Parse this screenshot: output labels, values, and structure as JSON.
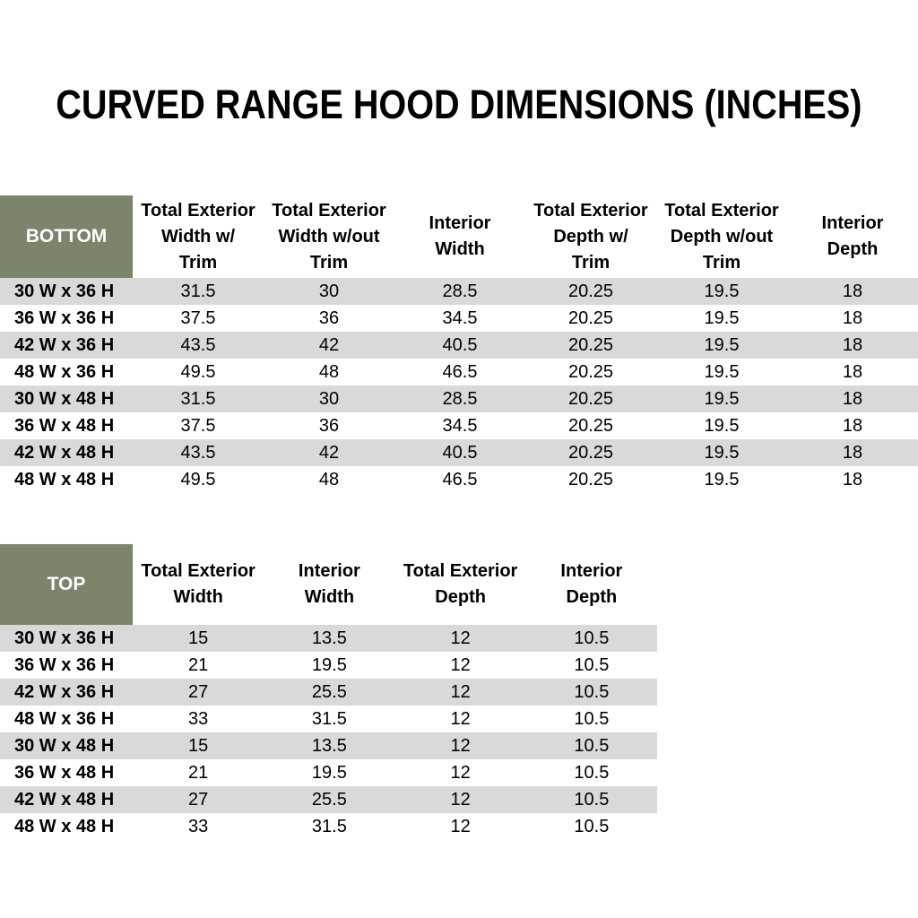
{
  "page": {
    "title": "CURVED RANGE HOOD DIMENSIONS (INCHES)"
  },
  "colors": {
    "accent_green": "#7A856C",
    "stripe_gray": "#D9D9D9",
    "text_black": "#000000",
    "corner_text_white": "#FFFFFF"
  },
  "bottom_table": {
    "corner_label": "BOTTOM",
    "columns": [
      "Total Exterior\nWidth w/\nTrim",
      "Total Exterior\nWidth w/out\nTrim",
      "Interior\nWidth",
      "Total Exterior\nDepth w/\nTrim",
      "Total Exterior\nDepth w/out\nTrim",
      "Interior\nDepth"
    ],
    "rows": [
      {
        "label": "30 W x 36 H",
        "values": [
          "31.5",
          "30",
          "28.5",
          "20.25",
          "19.5",
          "18"
        ]
      },
      {
        "label": "36 W x 36 H",
        "values": [
          "37.5",
          "36",
          "34.5",
          "20.25",
          "19.5",
          "18"
        ]
      },
      {
        "label": "42 W x 36 H",
        "values": [
          "43.5",
          "42",
          "40.5",
          "20.25",
          "19.5",
          "18"
        ]
      },
      {
        "label": "48 W x 36 H",
        "values": [
          "49.5",
          "48",
          "46.5",
          "20.25",
          "19.5",
          "18"
        ]
      },
      {
        "label": "30 W x 48 H",
        "values": [
          "31.5",
          "30",
          "28.5",
          "20.25",
          "19.5",
          "18"
        ]
      },
      {
        "label": "36 W x 48 H",
        "values": [
          "37.5",
          "36",
          "34.5",
          "20.25",
          "19.5",
          "18"
        ]
      },
      {
        "label": "42 W x 48 H",
        "values": [
          "43.5",
          "42",
          "40.5",
          "20.25",
          "19.5",
          "18"
        ]
      },
      {
        "label": "48 W x 48 H",
        "values": [
          "49.5",
          "48",
          "46.5",
          "20.25",
          "19.5",
          "18"
        ]
      }
    ]
  },
  "top_table": {
    "corner_label": "TOP",
    "columns": [
      "Total Exterior\nWidth",
      "Interior\nWidth",
      "Total Exterior\nDepth",
      "Interior\nDepth"
    ],
    "rows": [
      {
        "label": "30 W x 36 H",
        "values": [
          "15",
          "13.5",
          "12",
          "10.5"
        ]
      },
      {
        "label": "36 W x 36 H",
        "values": [
          "21",
          "19.5",
          "12",
          "10.5"
        ]
      },
      {
        "label": "42 W x 36 H",
        "values": [
          "27",
          "25.5",
          "12",
          "10.5"
        ]
      },
      {
        "label": "48 W x 36 H",
        "values": [
          "33",
          "31.5",
          "12",
          "10.5"
        ]
      },
      {
        "label": "30 W x 48 H",
        "values": [
          "15",
          "13.5",
          "12",
          "10.5"
        ]
      },
      {
        "label": "36 W x 48 H",
        "values": [
          "21",
          "19.5",
          "12",
          "10.5"
        ]
      },
      {
        "label": "42 W x 48 H",
        "values": [
          "27",
          "25.5",
          "12",
          "10.5"
        ]
      },
      {
        "label": "48 W x 48 H",
        "values": [
          "33",
          "31.5",
          "12",
          "10.5"
        ]
      }
    ]
  }
}
